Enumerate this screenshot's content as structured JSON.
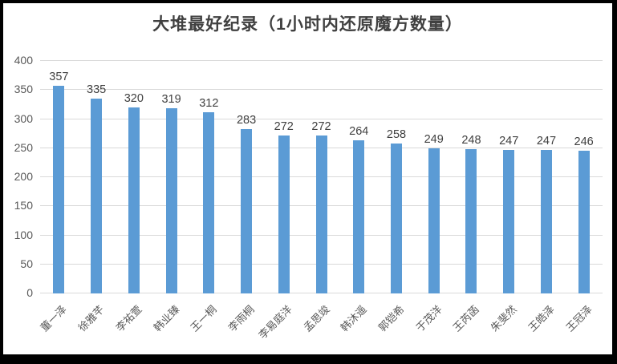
{
  "chart_data": {
    "type": "bar",
    "title": "大堆最好纪录（1小时内还原魔方数量）",
    "categories": [
      "董一泽",
      "徐雅芊",
      "李祐萱",
      "韩业臻",
      "王一桐",
      "李雨桐",
      "李易庭洋",
      "孟思竣",
      "韩沐遥",
      "郭铠希",
      "于茂洋",
      "王芮菡",
      "朱斐然",
      "王皓泽",
      "王冠泽"
    ],
    "values": [
      357,
      335,
      320,
      319,
      312,
      283,
      272,
      272,
      264,
      258,
      249,
      248,
      247,
      247,
      246
    ],
    "xlabel": "",
    "ylabel": "",
    "ylim": [
      0,
      400
    ],
    "yticks": [
      0,
      50,
      100,
      150,
      200,
      250,
      300,
      350,
      400
    ],
    "grid": true,
    "legend_position": "none",
    "colors": {
      "bar": "#5b9bd5",
      "gridline": "#d9d9d9",
      "title": "#404040",
      "value_label": "#404040",
      "axis_tick_label": "#595959"
    }
  }
}
